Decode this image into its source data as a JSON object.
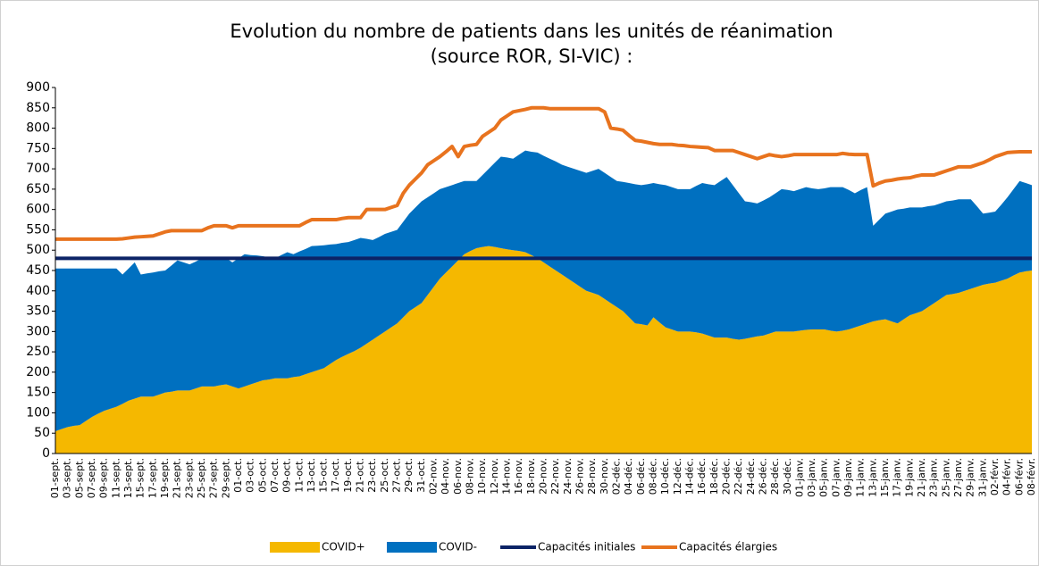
{
  "chart_data": {
    "type": "area",
    "stacked": true,
    "title": "Evolution du nombre de patients dans les unités de réanimation",
    "subtitle": "(source ROR, SI-VIC) :",
    "categories": [
      "01-sept.",
      null,
      "03-sept.",
      null,
      "05-sept.",
      null,
      "07-sept.",
      null,
      "09-sept.",
      null,
      "11-sept.",
      null,
      "13-sept.",
      null,
      "15-sept.",
      null,
      "17-sept.",
      null,
      "19-sept.",
      null,
      "21-sept.",
      null,
      "23-sept.",
      null,
      "25-sept.",
      null,
      "27-sept.",
      null,
      "29-sept.",
      null,
      "01-oct.",
      null,
      "03-oct.",
      null,
      "05-oct.",
      null,
      "07-oct.",
      null,
      "09-oct.",
      null,
      "11-oct.",
      null,
      "13-oct.",
      null,
      "15-oct.",
      null,
      "17-oct.",
      null,
      "19-oct.",
      null,
      "21-oct.",
      null,
      "23-oct.",
      null,
      "25-oct.",
      null,
      "27-oct.",
      null,
      "29-oct.",
      null,
      "31-oct.",
      null,
      "02-nov.",
      null,
      "04-nov.",
      null,
      "06-nov.",
      null,
      "08-nov.",
      null,
      "10-nov.",
      null,
      "12-nov.",
      null,
      "14-nov.",
      null,
      "16-nov.",
      null,
      "18-nov.",
      null,
      "20-nov.",
      null,
      "22-nov.",
      null,
      "24-nov.",
      null,
      "26-nov.",
      null,
      "28-nov.",
      null,
      "30-nov.",
      null,
      "02-déc.",
      null,
      "04-déc.",
      null,
      "06-déc.",
      null,
      "08-déc.",
      null,
      "10-déc.",
      null,
      "12-déc.",
      null,
      "14-déc.",
      null,
      "16-déc.",
      null,
      "18-déc.",
      null,
      "20-déc.",
      null,
      "22-déc.",
      null,
      "24-déc.",
      null,
      "26-déc.",
      null,
      "28-déc.",
      null,
      "30-déc.",
      null,
      "01-janv.",
      null,
      "03-janv.",
      null,
      "05-janv.",
      null,
      "07-janv.",
      null,
      "09-janv.",
      null,
      "11-janv.",
      null,
      "13-janv.",
      null,
      "15-janv.",
      null,
      "17-janv.",
      null,
      "19-janv.",
      null,
      "21-janv.",
      null,
      "23-janv.",
      null,
      "25-janv.",
      null,
      "27-janv.",
      null,
      "29-janv.",
      null,
      "31-janv.",
      null,
      "02-févr.",
      null,
      "04-févr.",
      null,
      "06-févr.",
      null,
      "08-févr."
    ],
    "series": [
      {
        "name": "COVID+",
        "type": "area",
        "color": "#f5b800",
        "values": [
          55,
          60,
          65,
          68,
          70,
          80,
          90,
          98,
          105,
          110,
          115,
          122,
          130,
          135,
          140,
          140,
          140,
          145,
          150,
          152,
          155,
          155,
          155,
          160,
          165,
          165,
          165,
          168,
          170,
          165,
          160,
          165,
          170,
          175,
          180,
          182,
          185,
          185,
          185,
          188,
          190,
          195,
          200,
          205,
          210,
          220,
          230,
          238,
          245,
          252,
          260,
          270,
          280,
          290,
          300,
          310,
          320,
          335,
          350,
          360,
          370,
          390,
          410,
          430,
          445,
          460,
          475,
          490,
          498,
          505,
          508,
          510,
          508,
          505,
          502,
          500,
          498,
          495,
          488,
          480,
          470,
          460,
          450,
          440,
          430,
          420,
          410,
          400,
          395,
          390,
          380,
          370,
          360,
          350,
          335,
          320,
          318,
          315,
          335,
          322,
          310,
          305,
          300,
          300,
          300,
          298,
          295,
          290,
          285,
          285,
          285,
          282,
          280,
          282,
          285,
          288,
          290,
          295,
          300,
          300,
          300,
          300,
          302,
          304,
          305,
          305,
          305,
          302,
          300,
          302,
          305,
          310,
          315,
          320,
          325,
          328,
          330,
          325,
          320,
          330,
          340,
          345,
          350,
          360,
          370,
          380,
          390,
          392,
          395,
          400,
          405,
          410,
          415,
          418,
          420,
          425,
          430,
          438,
          445,
          448,
          450
        ]
      },
      {
        "name": "COVID-",
        "type": "area",
        "color": "#0070c0",
        "values": [
          400,
          395,
          390,
          387,
          385,
          375,
          365,
          357,
          350,
          345,
          340,
          318,
          325,
          335,
          300,
          303,
          305,
          303,
          300,
          310,
          320,
          315,
          310,
          312,
          315,
          315,
          315,
          312,
          310,
          305,
          320,
          325,
          318,
          312,
          305,
          300,
          295,
          303,
          310,
          302,
          307,
          308,
          310,
          306,
          302,
          294,
          285,
          280,
          275,
          273,
          270,
          258,
          245,
          242,
          240,
          235,
          230,
          235,
          240,
          245,
          250,
          240,
          230,
          220,
          210,
          200,
          190,
          180,
          172,
          165,
          177,
          190,
          207,
          225,
          226,
          225,
          237,
          250,
          254,
          260,
          262,
          265,
          268,
          270,
          275,
          280,
          285,
          290,
          300,
          310,
          310,
          310,
          310,
          318,
          330,
          342,
          342,
          347,
          330,
          340,
          350,
          350,
          350,
          350,
          350,
          360,
          370,
          372,
          375,
          385,
          395,
          378,
          360,
          338,
          333,
          327,
          332,
          335,
          340,
          350,
          348,
          345,
          348,
          351,
          347,
          345,
          347,
          353,
          355,
          353,
          343,
          330,
          333,
          335,
          235,
          247,
          260,
          270,
          280,
          272,
          265,
          260,
          255,
          248,
          240,
          235,
          230,
          230,
          230,
          225,
          220,
          198,
          175,
          174,
          175,
          187,
          200,
          212,
          225,
          217,
          210
        ]
      },
      {
        "name": "Capacités initiales",
        "type": "line",
        "color": "#0c2366",
        "values": [
          480,
          480,
          480,
          480,
          480,
          480,
          480,
          480,
          480,
          480,
          480,
          480,
          480,
          480,
          480,
          480,
          480,
          480,
          480,
          480,
          480,
          480,
          480,
          480,
          480,
          480,
          480,
          480,
          480,
          480,
          480,
          480,
          480,
          480,
          480,
          480,
          480,
          480,
          480,
          480,
          480,
          480,
          480,
          480,
          480,
          480,
          480,
          480,
          480,
          480,
          480,
          480,
          480,
          480,
          480,
          480,
          480,
          480,
          480,
          480,
          480,
          480,
          480,
          480,
          480,
          480,
          480,
          480,
          480,
          480,
          480,
          480,
          480,
          480,
          480,
          480,
          480,
          480,
          480,
          480,
          480,
          480,
          480,
          480,
          480,
          480,
          480,
          480,
          480,
          480,
          480,
          480,
          480,
          480,
          480,
          480,
          480,
          480,
          480,
          480,
          480,
          480,
          480,
          480,
          480,
          480,
          480,
          480,
          480,
          480,
          480,
          480,
          480,
          480,
          480,
          480,
          480,
          480,
          480,
          480,
          480,
          480,
          480,
          480,
          480,
          480,
          480,
          480,
          480,
          480,
          480,
          480,
          480,
          480,
          480,
          480,
          480,
          480,
          480,
          480,
          480,
          480,
          480,
          480,
          480,
          480,
          480,
          480,
          480,
          480,
          480,
          480,
          480,
          480,
          480,
          480,
          480,
          480,
          480,
          480,
          480
        ]
      },
      {
        "name": "Capacités élargies",
        "type": "line",
        "color": "#e8731e",
        "values": [
          527,
          527,
          527,
          527,
          527,
          527,
          527,
          527,
          527,
          527,
          527,
          528,
          530,
          532,
          533,
          534,
          535,
          540,
          545,
          548,
          548,
          548,
          548,
          548,
          548,
          555,
          560,
          560,
          560,
          555,
          560,
          560,
          560,
          560,
          560,
          560,
          560,
          560,
          560,
          560,
          560,
          568,
          575,
          575,
          575,
          575,
          575,
          578,
          580,
          580,
          580,
          600,
          600,
          600,
          600,
          605,
          610,
          640,
          660,
          675,
          690,
          710,
          720,
          730,
          742,
          755,
          730,
          755,
          758,
          760,
          780,
          790,
          800,
          820,
          830,
          840,
          843,
          846,
          850,
          850,
          850,
          848,
          848,
          848,
          848,
          848,
          848,
          848,
          848,
          848,
          840,
          800,
          798,
          795,
          782,
          770,
          768,
          765,
          762,
          760,
          760,
          760,
          758,
          757,
          755,
          754,
          753,
          752,
          745,
          745,
          745,
          745,
          740,
          735,
          730,
          725,
          730,
          735,
          732,
          730,
          732,
          735,
          735,
          735,
          735,
          735,
          735,
          735,
          735,
          738,
          736,
          735,
          735,
          735,
          658,
          665,
          670,
          672,
          675,
          677,
          678,
          682,
          685,
          685,
          685,
          690,
          695,
          700,
          705,
          705,
          705,
          710,
          715,
          722,
          730,
          735,
          740,
          741,
          742,
          742,
          742
        ]
      }
    ],
    "ylim": [
      0,
      900
    ],
    "yticks": [
      0,
      50,
      100,
      150,
      200,
      250,
      300,
      350,
      400,
      450,
      500,
      550,
      600,
      650,
      700,
      750,
      800,
      850,
      900
    ],
    "grid": false,
    "legend": "bottom"
  }
}
